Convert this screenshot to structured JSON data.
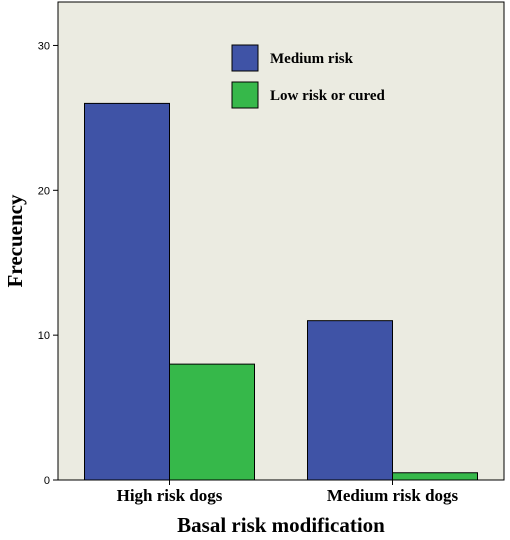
{
  "chart_data": {
    "type": "bar",
    "categories": [
      "High risk dogs",
      "Medium risk dogs"
    ],
    "series": [
      {
        "name": "Medium risk",
        "values": [
          26,
          11
        ],
        "color": "#3f53a6"
      },
      {
        "name": "Low risk or cured",
        "values": [
          8,
          0.5
        ],
        "color": "#36b84a"
      }
    ],
    "xlabel": "Basal risk modification",
    "ylabel": "Frecuency",
    "ylim": [
      0,
      33
    ],
    "yticks": [
      0,
      10,
      20,
      30
    ],
    "legend": "top-center",
    "grid": false,
    "plot_background": "#ebebe1"
  }
}
